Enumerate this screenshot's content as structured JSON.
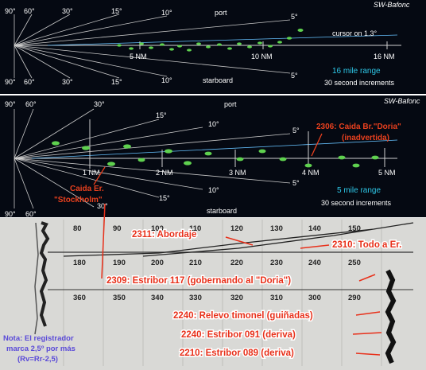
{
  "panel1": {
    "brand": "SW-Bafonc",
    "angles_top": [
      "90°",
      "60°",
      "30°",
      "15°",
      "10°",
      "5°"
    ],
    "angles_bottom": [
      "90°",
      "60°",
      "30°",
      "15°",
      "10°",
      "5°"
    ],
    "port": "port",
    "starboard": "starboard",
    "cursor": "cursor on 1.3°",
    "range_marks": [
      "5 NM",
      "10 NM",
      "16 NM"
    ],
    "range": "16 mile range",
    "increments": "30 second increments"
  },
  "panel2": {
    "brand": "SW-Bafonc",
    "angles_top": [
      "90°",
      "60°",
      "30°",
      "15°",
      "10°",
      "5°"
    ],
    "angles_bottom": [
      "90°",
      "60°",
      "30°",
      "15°",
      "10°",
      "5°"
    ],
    "port": "port",
    "starboard": "starboard",
    "range_marks": [
      "1 NM",
      "2 NM",
      "3 NM",
      "4 NM",
      "5 NM"
    ],
    "range": "5 mile range",
    "increments": "30 second increments",
    "event_2306_line1": "2306: Caida Br.\"Doria\"",
    "event_2306_line2": "(inadvertida)",
    "event_stockholm_line1": "Caida Er.",
    "event_stockholm_line2": "\"Stockholm\""
  },
  "chart": {
    "scale_top": [
      "80",
      "90",
      "100",
      "110",
      "120",
      "130",
      "140",
      "150"
    ],
    "scale_mid": [
      "180",
      "190",
      "200",
      "210",
      "220",
      "230",
      "240",
      "250"
    ],
    "scale_bot": [
      "360",
      "350",
      "340",
      "330",
      "320",
      "310",
      "300",
      "290"
    ],
    "events": [
      "2311: Abordaje",
      "2310: Todo a Er.",
      "2309: Estribor 117 (gobernando al \"Doria\")",
      "2240: Relevo timonel (guiñadas)",
      "2240: Estribor 091 (deriva)",
      "2210: Estribor 089 (deriva)"
    ],
    "note_line1": "Nota: El registrador",
    "note_line2": "marca 2,5º por más",
    "note_line3": "(Rv=Rr-2,5)"
  }
}
